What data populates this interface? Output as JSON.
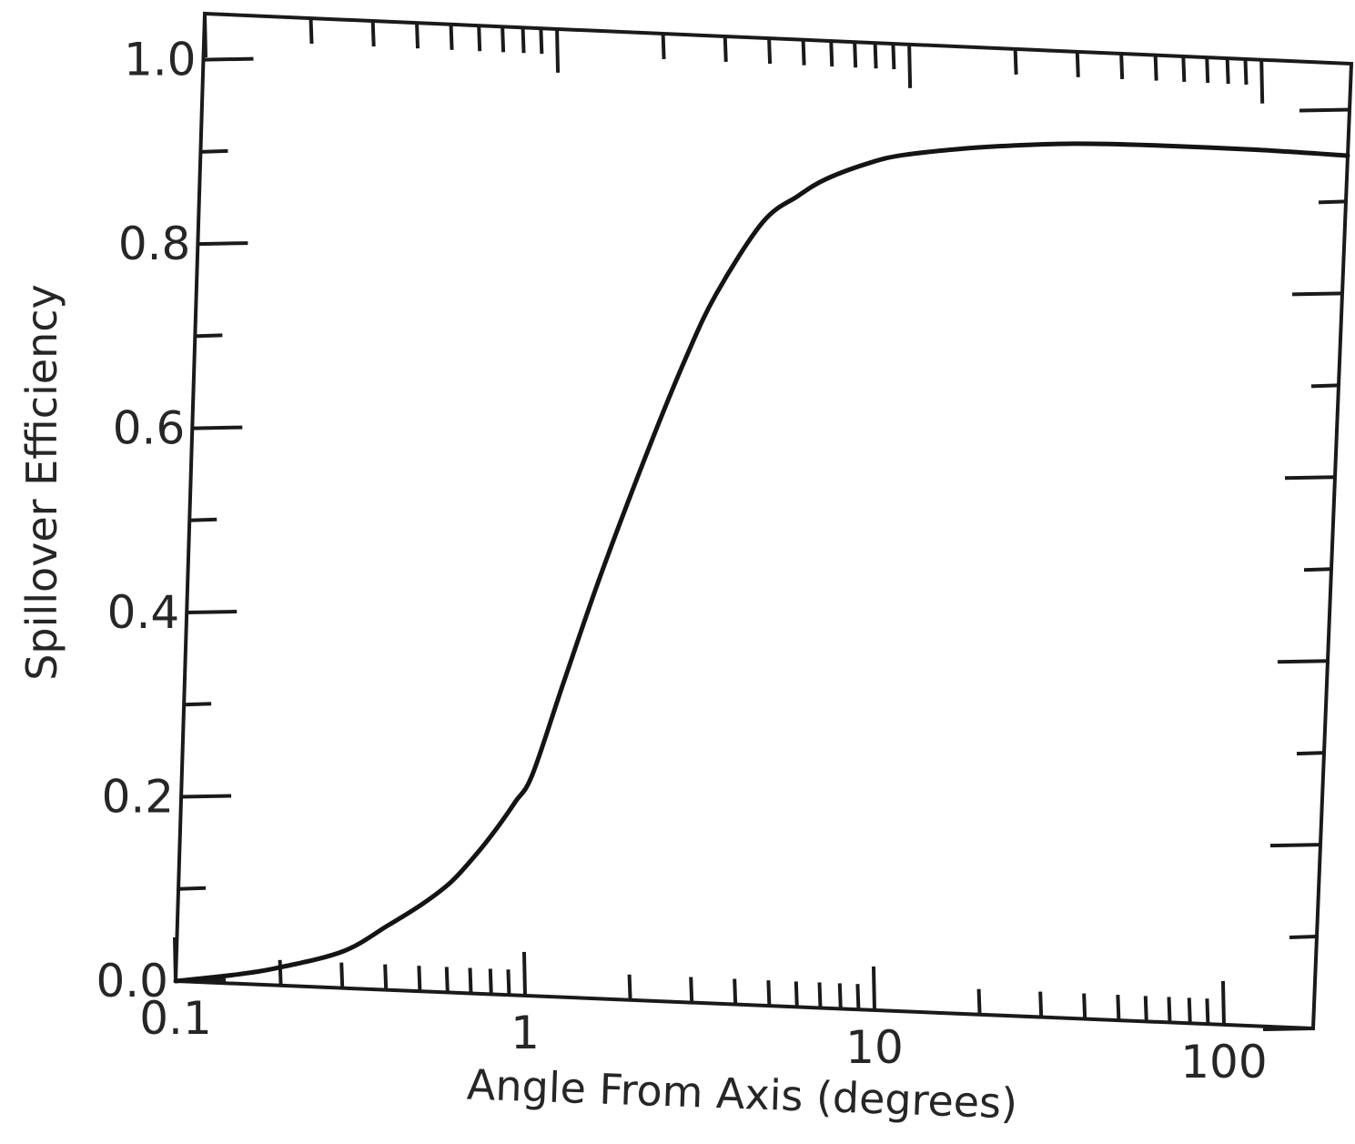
{
  "chart_data": {
    "type": "line",
    "title": "",
    "xlabel": "Angle From Axis (degrees)",
    "ylabel": "Spillover Efficiency",
    "x_scale": "log",
    "xlim": [
      0.1,
      180
    ],
    "ylim": [
      0.0,
      1.05
    ],
    "x_ticks": [
      {
        "value": 0.1,
        "label": "0.1"
      },
      {
        "value": 1,
        "label": "1"
      },
      {
        "value": 10,
        "label": "10"
      },
      {
        "value": 100,
        "label": "100"
      }
    ],
    "y_ticks": [
      {
        "value": 0.0,
        "label": "0.0"
      },
      {
        "value": 0.2,
        "label": "0.2"
      },
      {
        "value": 0.4,
        "label": "0.4"
      },
      {
        "value": 0.6,
        "label": "0.6"
      },
      {
        "value": 0.8,
        "label": "0.8"
      },
      {
        "value": 1.0,
        "label": "1.0"
      }
    ],
    "y_minor_ticks": [
      0.1,
      0.3,
      0.5,
      0.7,
      0.9
    ],
    "grid": false,
    "series": [
      {
        "color": "#141414",
        "x": [
          0.1,
          0.15,
          0.2,
          0.3,
          0.4,
          0.5,
          0.6,
          0.7,
          0.8,
          0.9,
          1.0,
          1.2,
          1.5,
          2.0,
          2.5,
          3.0,
          4.0,
          5.0,
          6.0,
          8.0,
          10,
          15,
          20,
          30,
          50,
          100,
          180
        ],
        "y": [
          0.0,
          0.01,
          0.02,
          0.04,
          0.07,
          0.095,
          0.12,
          0.15,
          0.18,
          0.21,
          0.24,
          0.34,
          0.46,
          0.6,
          0.7,
          0.77,
          0.85,
          0.88,
          0.9,
          0.92,
          0.93,
          0.94,
          0.945,
          0.95,
          0.952,
          0.952,
          0.95
        ]
      }
    ]
  }
}
